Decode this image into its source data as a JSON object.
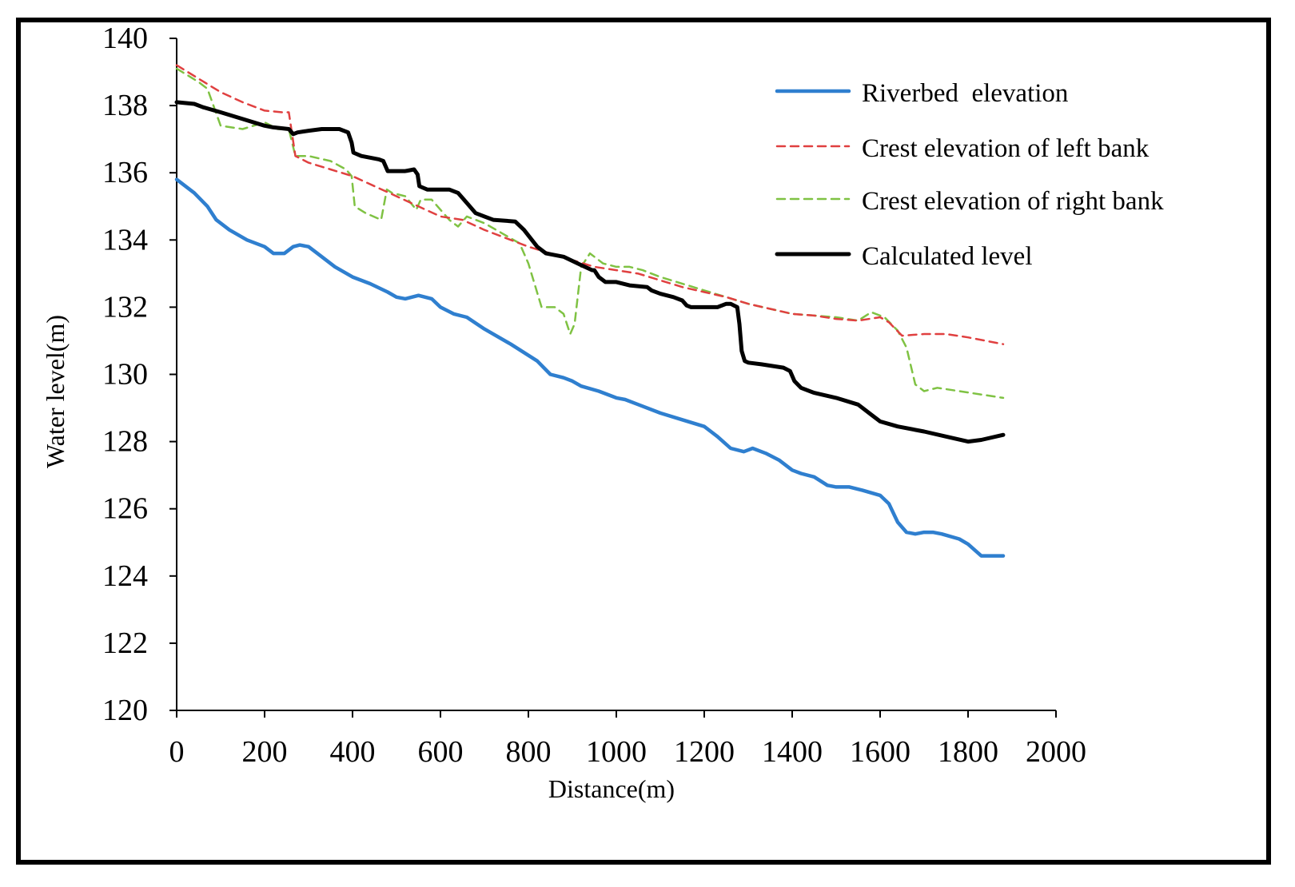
{
  "chart_data": {
    "type": "line",
    "title": "",
    "xlabel": "Distance(m)",
    "ylabel": "Water level(m)",
    "xlim": [
      0,
      2000
    ],
    "ylim": [
      120,
      140
    ],
    "xticks": [
      0,
      200,
      400,
      600,
      800,
      1000,
      1200,
      1400,
      1600,
      1800,
      2000
    ],
    "yticks": [
      120,
      122,
      124,
      126,
      128,
      130,
      132,
      134,
      136,
      138,
      140
    ],
    "grid": false,
    "legend_position": "top-right",
    "series": [
      {
        "name": "Riverbed  elevation",
        "color": "#2f7fcf",
        "style": "solid",
        "x": [
          0,
          40,
          70,
          90,
          120,
          160,
          200,
          220,
          245,
          265,
          280,
          300,
          320,
          360,
          400,
          440,
          480,
          500,
          520,
          550,
          580,
          600,
          630,
          660,
          700,
          760,
          820,
          850,
          880,
          900,
          920,
          960,
          1000,
          1020,
          1050,
          1100,
          1150,
          1200,
          1230,
          1260,
          1290,
          1310,
          1340,
          1370,
          1400,
          1420,
          1450,
          1480,
          1500,
          1530,
          1560,
          1600,
          1620,
          1640,
          1660,
          1680,
          1700,
          1720,
          1740,
          1780,
          1800,
          1830,
          1880
        ],
        "y": [
          135.8,
          135.4,
          135.0,
          134.6,
          134.3,
          134.0,
          133.8,
          133.6,
          133.6,
          133.8,
          133.85,
          133.8,
          133.6,
          133.2,
          132.9,
          132.7,
          132.45,
          132.3,
          132.25,
          132.35,
          132.25,
          132.0,
          131.8,
          131.7,
          131.35,
          130.9,
          130.4,
          130.0,
          129.9,
          129.8,
          129.65,
          129.5,
          129.3,
          129.25,
          129.1,
          128.85,
          128.65,
          128.45,
          128.15,
          127.8,
          127.7,
          127.8,
          127.65,
          127.45,
          127.15,
          127.05,
          126.95,
          126.7,
          126.65,
          126.65,
          126.55,
          126.4,
          126.15,
          125.6,
          125.3,
          125.25,
          125.3,
          125.3,
          125.25,
          125.1,
          124.95,
          124.6,
          124.6
        ]
      },
      {
        "name": "Crest elevation of left bank",
        "color": "#e04040",
        "style": "dashed",
        "x": [
          0,
          50,
          100,
          150,
          200,
          240,
          255,
          270,
          300,
          350,
          400,
          450,
          500,
          550,
          600,
          650,
          700,
          760,
          800,
          850,
          900,
          950,
          1000,
          1050,
          1100,
          1150,
          1200,
          1250,
          1300,
          1350,
          1400,
          1450,
          1500,
          1550,
          1600,
          1620,
          1650,
          1700,
          1750,
          1800,
          1880
        ],
        "y": [
          139.2,
          138.8,
          138.4,
          138.1,
          137.85,
          137.8,
          137.8,
          136.5,
          136.3,
          136.1,
          135.9,
          135.6,
          135.3,
          135.0,
          134.7,
          134.6,
          134.3,
          134.0,
          133.8,
          133.6,
          133.4,
          133.2,
          133.1,
          133.0,
          132.8,
          132.6,
          132.45,
          132.3,
          132.1,
          131.95,
          131.8,
          131.75,
          131.65,
          131.6,
          131.7,
          131.55,
          131.15,
          131.2,
          131.2,
          131.1,
          130.9
        ]
      },
      {
        "name": "Crest elevation of right bank",
        "color": "#7fc243",
        "style": "dashed",
        "x": [
          0,
          50,
          70,
          100,
          150,
          200,
          230,
          255,
          270,
          300,
          350,
          385,
          398,
          405,
          430,
          465,
          478,
          490,
          520,
          545,
          555,
          580,
          620,
          640,
          660,
          700,
          740,
          780,
          800,
          830,
          860,
          880,
          895,
          905,
          920,
          940,
          970,
          1000,
          1030,
          1060,
          1100,
          1200,
          1300,
          1400,
          1500,
          1550,
          1580,
          1610,
          1640,
          1660,
          1680,
          1700,
          1730,
          1780,
          1880
        ],
        "y": [
          139.1,
          138.7,
          138.5,
          137.4,
          137.3,
          137.5,
          137.3,
          137.3,
          136.5,
          136.5,
          136.35,
          136.1,
          135.9,
          135.0,
          134.8,
          134.6,
          135.5,
          135.4,
          135.3,
          134.9,
          135.2,
          135.2,
          134.6,
          134.4,
          134.7,
          134.5,
          134.2,
          133.9,
          133.3,
          132.0,
          132.0,
          131.8,
          131.2,
          131.5,
          133.2,
          133.6,
          133.3,
          133.2,
          133.2,
          133.1,
          132.9,
          132.5,
          132.1,
          131.8,
          131.7,
          131.6,
          131.85,
          131.7,
          131.3,
          130.8,
          129.7,
          129.5,
          129.6,
          129.5,
          129.3
        ]
      },
      {
        "name": "Calculated level",
        "color": "#000000",
        "style": "solid",
        "x": [
          0,
          40,
          60,
          100,
          150,
          200,
          220,
          255,
          265,
          275,
          300,
          330,
          370,
          390,
          398,
          402,
          420,
          460,
          470,
          480,
          520,
          540,
          548,
          552,
          570,
          620,
          640,
          660,
          680,
          700,
          720,
          770,
          790,
          820,
          840,
          880,
          920,
          945,
          950,
          960,
          975,
          1000,
          1030,
          1070,
          1080,
          1100,
          1130,
          1150,
          1160,
          1170,
          1200,
          1230,
          1250,
          1260,
          1275,
          1280,
          1285,
          1292,
          1300,
          1330,
          1380,
          1395,
          1405,
          1420,
          1450,
          1500,
          1550,
          1580,
          1600,
          1640,
          1700,
          1750,
          1800,
          1830,
          1880
        ],
        "y": [
          138.1,
          138.05,
          137.95,
          137.8,
          137.6,
          137.4,
          137.35,
          137.3,
          137.15,
          137.2,
          137.25,
          137.3,
          137.3,
          137.2,
          136.9,
          136.6,
          136.5,
          136.4,
          136.35,
          136.05,
          136.05,
          136.1,
          135.95,
          135.6,
          135.5,
          135.5,
          135.4,
          135.1,
          134.8,
          134.7,
          134.6,
          134.55,
          134.3,
          133.8,
          133.6,
          133.5,
          133.25,
          133.1,
          133.1,
          132.9,
          132.75,
          132.75,
          132.65,
          132.6,
          132.5,
          132.4,
          132.3,
          132.2,
          132.05,
          132.0,
          132.0,
          132.0,
          132.1,
          132.1,
          132.0,
          131.5,
          130.7,
          130.4,
          130.35,
          130.3,
          130.2,
          130.1,
          129.8,
          129.6,
          129.45,
          129.3,
          129.1,
          128.8,
          128.6,
          128.45,
          128.3,
          128.15,
          128.0,
          128.05,
          128.2
        ]
      }
    ]
  }
}
